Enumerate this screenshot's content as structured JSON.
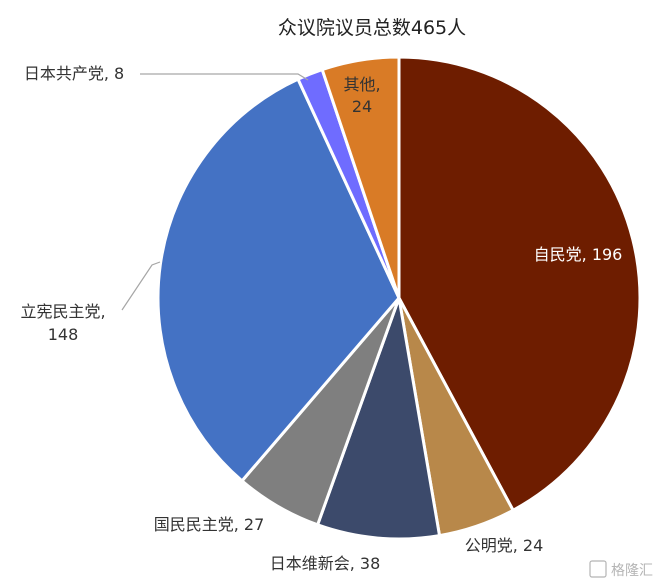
{
  "chart_data": {
    "type": "pie",
    "title": "众议院议员总数465人",
    "slices": [
      {
        "name": "自民党",
        "value": 196,
        "color": "#6E1D00",
        "label": "自民党, 196"
      },
      {
        "name": "公明党",
        "value": 24,
        "color": "#B8884A",
        "label": "公明党, 24"
      },
      {
        "name": "日本维新会",
        "value": 38,
        "color": "#3C4A6B",
        "label": "日本维新会, 38"
      },
      {
        "name": "国民民主党",
        "value": 27,
        "color": "#7F7F7F",
        "label": "国民民主党, 27"
      },
      {
        "name": "立宪民主党",
        "value": 148,
        "color": "#4472C4",
        "label_lines": [
          "立宪民主党,",
          "148"
        ]
      },
      {
        "name": "日本共产党",
        "value": 8,
        "color": "#6F6CFF",
        "label": "日本共产党, 8"
      },
      {
        "name": "其他",
        "value": 24,
        "color": "#D97B26",
        "label_lines": [
          "其他,",
          "24"
        ]
      }
    ]
  },
  "watermark": {
    "text": "格隆汇"
  }
}
